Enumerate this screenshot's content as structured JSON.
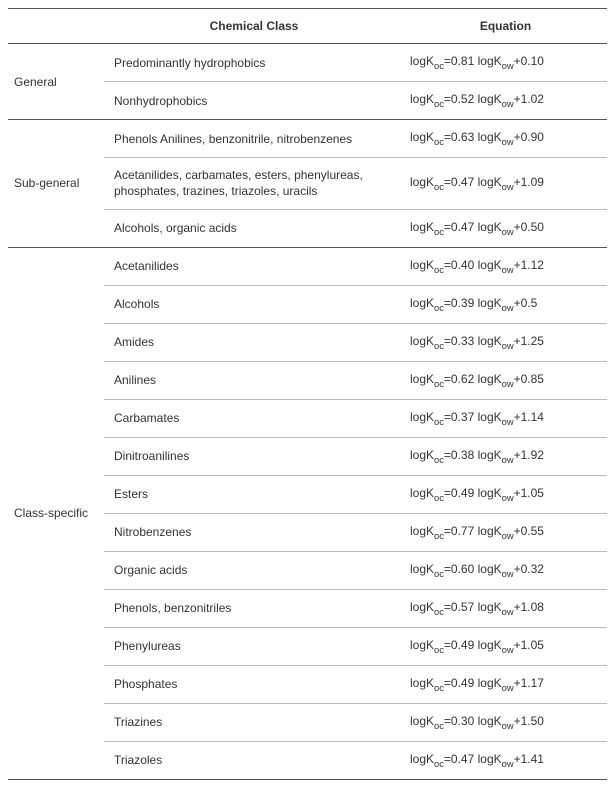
{
  "colors": {
    "text": "#333333",
    "background": "#ffffff",
    "heavy_rule": "#555555",
    "light_rule": "#bbbbbb"
  },
  "typography": {
    "font_family": "Arial, Helvetica, sans-serif",
    "base_fontsize_pt": 9,
    "header_weight": "bold"
  },
  "header": {
    "category": "",
    "chemical_class": "Chemical Class",
    "equation": "Equation"
  },
  "equation_template": {
    "lhs_prefix": "logK",
    "lhs_sub": "oc",
    "rhs_prefix": "logK",
    "rhs_sub": "ow"
  },
  "groups": [
    {
      "name": "General",
      "rows": [
        {
          "class": "Predominantly hydrophobics",
          "a": "0.81",
          "b": "0.10"
        },
        {
          "class": "Nonhydrophobics",
          "a": "0.52",
          "b": "1.02"
        }
      ]
    },
    {
      "name": "Sub-general",
      "rows": [
        {
          "class": "Phenols Anilines, benzonitrile, nitrobenzenes",
          "a": "0.63",
          "b": "0.90"
        },
        {
          "class": "Acetanilides, carbamates, esters, phenylureas, phosphates, trazines, triazoles, uracils",
          "a": "0.47",
          "b": "1.09"
        },
        {
          "class": "Alcohols, organic acids",
          "a": "0.47",
          "b": "0.50"
        }
      ]
    },
    {
      "name": "Class-specific",
      "rows": [
        {
          "class": "Acetanilides",
          "a": "0.40",
          "b": "1.12"
        },
        {
          "class": "Alcohols",
          "a": "0.39",
          "b": "0.5"
        },
        {
          "class": "Amides",
          "a": "0.33",
          "b": "1.25"
        },
        {
          "class": "Anilines",
          "a": "0.62",
          "b": "0.85"
        },
        {
          "class": "Carbamates",
          "a": "0.37",
          "b": "1.14"
        },
        {
          "class": "Dinitroanilines",
          "a": "0.38",
          "b": "1.92"
        },
        {
          "class": "Esters",
          "a": "0.49",
          "b": "1.05"
        },
        {
          "class": "Nitrobenzenes",
          "a": "0.77",
          "b": "0.55"
        },
        {
          "class": "Organic acids",
          "a": "0.60",
          "b": "0.32"
        },
        {
          "class": "Phenols, benzonitriles",
          "a": "0.57",
          "b": "1.08"
        },
        {
          "class": "Phenylureas",
          "a": "0.49",
          "b": "1.05"
        },
        {
          "class": "Phosphates",
          "a": "0.49",
          "b": "1.17"
        },
        {
          "class": "Triazines",
          "a": "0.30",
          "b": "1.50"
        },
        {
          "class": "Triazoles",
          "a": "0.47",
          "b": "1.41"
        }
      ]
    }
  ]
}
